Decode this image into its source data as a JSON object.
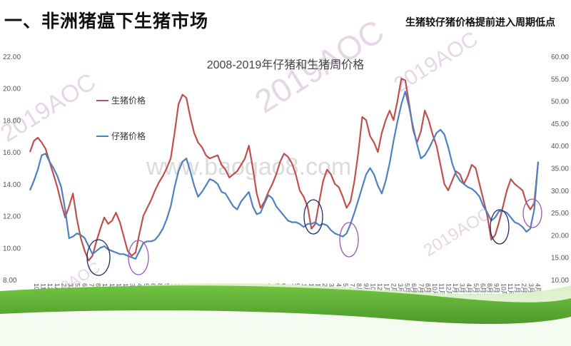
{
  "slide": {
    "title": "一、非洲猪瘟下生猪市场",
    "subtitle": "生猪较仔猪价格提前进入周期低点"
  },
  "watermarks": [
    "2019AOC",
    "www.baogao8.com"
  ],
  "colors": {
    "hog": "#c0504d",
    "piglet": "#4f81bd",
    "circle_dark": "#1f2a6a",
    "circle_light": "#9b59b6",
    "green": "#3f9b1e"
  },
  "chart_data": {
    "type": "line",
    "title": "2008-2019年仔猪和生猪周价格",
    "left_axis": {
      "ylim": [
        8,
        22
      ],
      "ticks": [
        "8.00",
        "10.00",
        "12.00",
        "14.00",
        "16.00",
        "18.00",
        "20.00",
        "22.00"
      ]
    },
    "right_axis": {
      "ylim": [
        10,
        60
      ],
      "ticks": [
        "10.00",
        "15.00",
        "20.00",
        "25.00",
        "30.00",
        "35.00",
        "40.00",
        "45.00",
        "50.00",
        "55.00",
        "60.00"
      ]
    },
    "series": [
      {
        "name": "生猪价格",
        "axis": "left",
        "values": [
          16,
          16.7,
          16.9,
          16.6,
          16.2,
          15.4,
          14.6,
          13.8,
          12.8,
          11.9,
          12.6,
          13.4,
          11.8,
          10.6,
          9.8,
          9.2,
          9.5,
          10.4,
          11.2,
          11.9,
          11.5,
          11.7,
          12.2,
          11.6,
          10.7,
          9.8,
          9.5,
          9.7,
          10.9,
          12.0,
          12.5,
          13.0,
          13.6,
          14.1,
          14.5,
          15.0,
          15.6,
          17.2,
          19.0,
          19.6,
          19.4,
          18.2,
          17.2,
          16.6,
          16.3,
          15.8,
          15.6,
          15.7,
          15.8,
          15.2,
          14.9,
          14.4,
          14.6,
          14.8,
          15.2,
          15.6,
          16.4,
          15.0,
          13.4,
          12.5,
          12.9,
          13.5,
          14.0,
          14.6,
          15.4,
          15.9,
          15.7,
          15.3,
          14.6,
          13.6,
          13.2,
          12.6,
          11.2,
          11.5,
          12.9,
          14.2,
          14.9,
          14.6,
          14.0,
          13.8,
          13.2,
          12.5,
          12.9,
          14.2,
          16.0,
          18.2,
          18.0,
          17.0,
          16.6,
          16.0,
          17.2,
          18.0,
          18.6,
          18.0,
          19.2,
          20.6,
          20.5,
          19.0,
          17.4,
          16.6,
          17.3,
          18.6,
          18.0,
          17.1,
          16.4,
          15.2,
          14.0,
          13.6,
          14.2,
          14.8,
          14.6,
          14.0,
          14.5,
          15.2,
          15.0,
          14.0,
          13.0,
          12.0,
          10.5,
          10.8,
          11.6,
          12.6,
          13.6,
          14.3,
          14.0,
          13.8,
          13.6,
          12.8,
          12.4,
          12.8,
          15.4
        ]
      },
      {
        "name": "仔猪价格",
        "axis": "left",
        "values": [
          13.6,
          14.2,
          14.9,
          15.8,
          15.9,
          15.4,
          15.0,
          14.5,
          13.8,
          12.4,
          10.6,
          10.7,
          10.9,
          10.8,
          10.6,
          10.1,
          9.6,
          9.8,
          10.0,
          10.1,
          9.9,
          9.8,
          9.7,
          9.6,
          9.6,
          9.5,
          9.4,
          9.3,
          9.8,
          10.3,
          10.4,
          10.4,
          10.5,
          10.8,
          11.2,
          11.8,
          12.6,
          13.8,
          14.8,
          15.4,
          15.6,
          14.8,
          13.9,
          13.2,
          13.5,
          13.9,
          14.3,
          14.2,
          14.0,
          13.5,
          13.4,
          13.0,
          12.6,
          12.4,
          12.9,
          13.2,
          13.5,
          12.6,
          12.1,
          12.2,
          12.8,
          13.3,
          13.1,
          12.6,
          12.3,
          12.0,
          11.7,
          11.6,
          11.6,
          11.5,
          11.3,
          11.5,
          11.5,
          11.6,
          11.4,
          11.5,
          11.4,
          11.1,
          10.9,
          10.8,
          10.7,
          10.9,
          11.5,
          12.2,
          13.0,
          13.8,
          14.6,
          15.0,
          14.6,
          13.9,
          13.4,
          14.2,
          15.3,
          16.7,
          17.9,
          19.0,
          19.8,
          18.8,
          17.6,
          16.5,
          15.6,
          15.8,
          16.2,
          16.7,
          17.2,
          17.4,
          17.1,
          16.3,
          15.3,
          14.6,
          14.2,
          14.0,
          13.8,
          13.7,
          13.5,
          13.2,
          12.6,
          12.2,
          11.7,
          11.9,
          12.3,
          12.3,
          12.2,
          11.9,
          11.6,
          11.5,
          11.3,
          11.0,
          11.2,
          12.4,
          15.4
        ]
      }
    ],
    "x_tick_labels": [
      "10月第3周",
      "11月第4周",
      "12月第1周",
      "1月第2周",
      "2月第3周",
      "3月第4周",
      "5月第1周",
      "6月第2周",
      "7月第3周",
      "8月第4周",
      "10月第1周",
      "11月第2周",
      "12月第3周",
      "1月第4周",
      "3月第1周",
      "4月第2周",
      "5月第3周",
      "6月第4周",
      "8月第1周",
      "9月第2周",
      "10月第3周",
      "11月第4周",
      "1月第1周",
      "2月第2周",
      "3月第3周",
      "4月第4周",
      "6月第1周",
      "7月第2周",
      "8月第3周",
      "9月第4周",
      "11月第1周",
      "12月第2周",
      "1月第3周",
      "2月第4周",
      "4月第1周",
      "5月第2周",
      "6月第3周",
      "7月第4周",
      "9月第1周",
      "10月第2周",
      "11月第3周",
      "12月第4周",
      "2月第1周",
      "3月第2周",
      "4月第3周",
      "5月第4周",
      "7月第1周",
      "8月第2周",
      "9月第3周",
      "10月第4周",
      "12月第1周",
      "1月第2周",
      "2月第3周",
      "3月第4周",
      "5月第1周",
      "6月第2周",
      "7月第3周",
      "8月第4周",
      "10月第1周",
      "11月第2周",
      "12月第3周",
      "1月第4周",
      "3月第1周",
      "4月第2周",
      "5月第3周",
      "6月第4周",
      "8月第1周",
      "9月第2周",
      "10月第3周",
      "11月第4周",
      "1月第1周",
      "2月第2周",
      "3月第3周",
      "4月第4周"
    ],
    "legend": [
      "生猪价格",
      "仔猪价格"
    ],
    "legend_position": "top-left",
    "grid": false
  }
}
